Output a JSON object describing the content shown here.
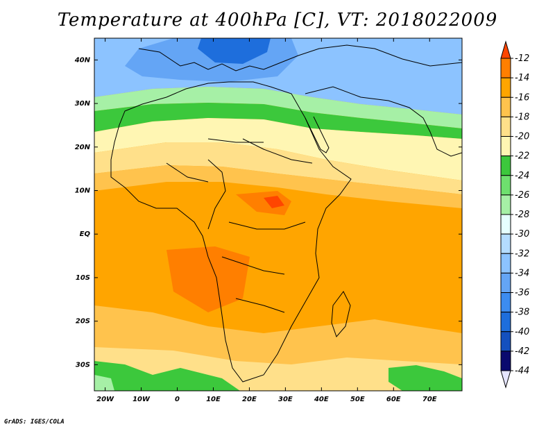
{
  "title": "Temperature at 400hPa [C], VT: 2018022009",
  "credit": "GrADS: IGES/COLA",
  "map": {
    "lon_range": [
      -23,
      79
    ],
    "lat_range": [
      -36,
      45
    ],
    "x_ticks": [
      {
        "value": -20,
        "label": "20W"
      },
      {
        "value": -10,
        "label": "10W"
      },
      {
        "value": 0,
        "label": "0"
      },
      {
        "value": 10,
        "label": "10E"
      },
      {
        "value": 20,
        "label": "20E"
      },
      {
        "value": 30,
        "label": "30E"
      },
      {
        "value": 40,
        "label": "40E"
      },
      {
        "value": 50,
        "label": "50E"
      },
      {
        "value": 60,
        "label": "60E"
      },
      {
        "value": 70,
        "label": "70E"
      }
    ],
    "y_ticks": [
      {
        "value": 40,
        "label": "40N"
      },
      {
        "value": 30,
        "label": "30N"
      },
      {
        "value": 20,
        "label": "20N"
      },
      {
        "value": 10,
        "label": "10N"
      },
      {
        "value": 0,
        "label": "EQ"
      },
      {
        "value": -10,
        "label": "10S"
      },
      {
        "value": -20,
        "label": "20S"
      },
      {
        "value": -30,
        "label": "30S"
      }
    ]
  },
  "colorbar": {
    "levels": [
      "-12",
      "-14",
      "-16",
      "-18",
      "-20",
      "-22",
      "-24",
      "-26",
      "-28",
      "-30",
      "-32",
      "-34",
      "-36",
      "-38",
      "-40",
      "-42",
      "-44"
    ],
    "colors_top_to_bottom": [
      "#ff4500",
      "#ff7f00",
      "#ffa500",
      "#ffc34d",
      "#ffe08a",
      "#fff6b3",
      "#3cc83c",
      "#6ee06e",
      "#a6f0a6",
      "#e6ffff",
      "#b4dcff",
      "#8cc3ff",
      "#64a5f5",
      "#3c8cf0",
      "#1e6edc",
      "#1450be",
      "#0a0a6e",
      "#e6e6ff"
    ]
  },
  "colors": {
    "land_outline": "#000000"
  }
}
